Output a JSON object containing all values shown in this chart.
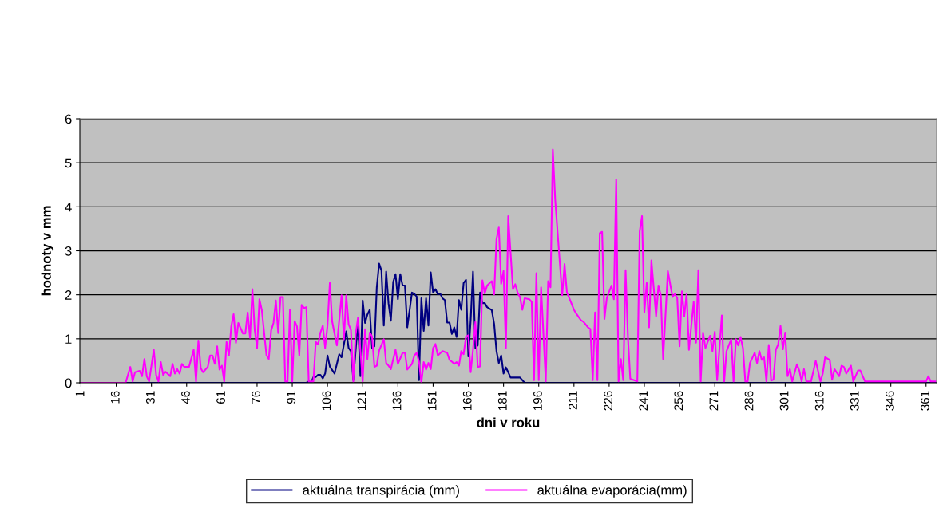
{
  "chart_data": {
    "type": "line",
    "xlabel": "dni v roku",
    "ylabel": "hodnoty v mm",
    "xlim": [
      0.5,
      365.5
    ],
    "xticks": [
      1,
      16,
      31,
      46,
      61,
      76,
      91,
      106,
      121,
      136,
      151,
      166,
      181,
      196,
      211,
      226,
      241,
      256,
      271,
      286,
      301,
      316,
      331,
      346,
      361
    ],
    "ylim": [
      0,
      6
    ],
    "yticks": [
      0,
      1,
      2,
      3,
      4,
      5,
      6
    ],
    "grid": "y",
    "legend": "bottom",
    "line_style": "solid",
    "marker": "none",
    "series": [
      {
        "name": "aktuálna transpirácia (mm)",
        "color": "#000080",
        "x": [
          1,
          97,
          98,
          99,
          100,
          101,
          102,
          103,
          104,
          105,
          106,
          107,
          109,
          111,
          112,
          114,
          115,
          116,
          117,
          119,
          120,
          121,
          122,
          123,
          124,
          125,
          126,
          127,
          128,
          129,
          130,
          131,
          132,
          133,
          134,
          135,
          136,
          137,
          138,
          139,
          140,
          142,
          143,
          144,
          145,
          146,
          147,
          148,
          149,
          150,
          151,
          152,
          153,
          154,
          155,
          156,
          157,
          158,
          159,
          160,
          161,
          162,
          163,
          164,
          165,
          166,
          167,
          168,
          169,
          170,
          171,
          172,
          173,
          174,
          176,
          177,
          178,
          179,
          180,
          181,
          182,
          183,
          184,
          188,
          190,
          365
        ],
        "values": [
          0,
          0,
          0.03,
          0,
          0.13,
          0.13,
          0.18,
          0.18,
          0.1,
          0.21,
          0.62,
          0.37,
          0.21,
          0.65,
          0.58,
          1.17,
          0.79,
          0.72,
          0.06,
          1.4,
          0.15,
          1.87,
          1.36,
          1.55,
          1.66,
          0.79,
          0.83,
          2.17,
          2.71,
          2.55,
          1.3,
          2.53,
          1.81,
          1.41,
          2.29,
          2.47,
          1.9,
          2.47,
          2.21,
          2.21,
          1.26,
          2.05,
          2.02,
          1.96,
          0.06,
          1.92,
          1.18,
          1.92,
          1.3,
          2.51,
          2.05,
          2.13,
          2.01,
          2.03,
          1.92,
          1.88,
          1.37,
          1.37,
          1.11,
          1.26,
          1.04,
          1.88,
          1.66,
          2.27,
          2.34,
          0.6,
          1.42,
          2.53,
          0.79,
          0.85,
          2.05,
          1.81,
          1.81,
          1.72,
          1.65,
          1.34,
          0.72,
          0.45,
          0.62,
          0.21,
          0.35,
          0.24,
          0.12,
          0.12,
          0,
          0
        ]
      },
      {
        "name": "aktuálna evaporácia(mm)",
        "color": "#ff00ff",
        "x": [
          1,
          20,
          22,
          23,
          24,
          26,
          27,
          28,
          29,
          30,
          32,
          33,
          34,
          35,
          36,
          37,
          39,
          40,
          41,
          42,
          43,
          44,
          45,
          47,
          49,
          50,
          51,
          52,
          53,
          55,
          56,
          57,
          58,
          59,
          60,
          61,
          62,
          63,
          64,
          65,
          66,
          67,
          68,
          70,
          71,
          72,
          73,
          74,
          75,
          76,
          77,
          78,
          80,
          81,
          82,
          83,
          84,
          85,
          86,
          87,
          88,
          89,
          90,
          91,
          92,
          93,
          94,
          95,
          96,
          97,
          98,
          100,
          101,
          102,
          103,
          104,
          105,
          106,
          107,
          108,
          110,
          112,
          113,
          114,
          115,
          116,
          117,
          118,
          119,
          121,
          122,
          123,
          124,
          125,
          126,
          127,
          128,
          130,
          131,
          132,
          133,
          134,
          135,
          136,
          138,
          139,
          140,
          142,
          143,
          144,
          145,
          146,
          147,
          148,
          149,
          150,
          151,
          152,
          153,
          155,
          157,
          158,
          159,
          160,
          161,
          162,
          163,
          164,
          165,
          166,
          167,
          168,
          169,
          170,
          171,
          172,
          173,
          174,
          176,
          177,
          178,
          179,
          180,
          181,
          182,
          183,
          184,
          185,
          186,
          187,
          188,
          189,
          190,
          192,
          193,
          194,
          195,
          196,
          197,
          199,
          200,
          201,
          202,
          203,
          206,
          207,
          208,
          209,
          211,
          212,
          214,
          215,
          217,
          218,
          219,
          220,
          221,
          222,
          223,
          224,
          225,
          227,
          228,
          229,
          230,
          231,
          232,
          233,
          234,
          235,
          238,
          239,
          240,
          241,
          242,
          243,
          244,
          246,
          247,
          248,
          249,
          251,
          253,
          254,
          255,
          256,
          257,
          258,
          259,
          260,
          262,
          263,
          264,
          265,
          266,
          267,
          269,
          270,
          271,
          272,
          274,
          275,
          276,
          278,
          279,
          280,
          281,
          282,
          283,
          284,
          285,
          286,
          288,
          289,
          290,
          291,
          292,
          293,
          294,
          295,
          296,
          297,
          298,
          299,
          300,
          301,
          302,
          303,
          304,
          306,
          307,
          308,
          309,
          310,
          312,
          314,
          316,
          317,
          318,
          320,
          321,
          322,
          324,
          325,
          326,
          327,
          329,
          330,
          332,
          333,
          335,
          361,
          362,
          363,
          365
        ],
        "values": [
          0,
          0,
          0.36,
          0.03,
          0.24,
          0.27,
          0.15,
          0.54,
          0.15,
          0.03,
          0.75,
          0.18,
          0.03,
          0.47,
          0.18,
          0.25,
          0.15,
          0.43,
          0.21,
          0.31,
          0.21,
          0.43,
          0.36,
          0.36,
          0.75,
          0.03,
          0.96,
          0.33,
          0.24,
          0.36,
          0.62,
          0.62,
          0.43,
          0.83,
          0.3,
          0.39,
          0.03,
          0.93,
          0.62,
          1.28,
          1.56,
          0.91,
          1.36,
          1.12,
          1.12,
          1.6,
          1.02,
          2.13,
          1.2,
          0.79,
          1.9,
          1.66,
          0.63,
          0.54,
          1.19,
          1.36,
          1.87,
          1.13,
          1.95,
          1.95,
          0.03,
          0.03,
          1.66,
          0.03,
          1.4,
          1.28,
          0.62,
          1.77,
          1.7,
          1.72,
          0.03,
          0.03,
          0.93,
          0.87,
          1.14,
          1.3,
          0.79,
          1.3,
          2.27,
          1.39,
          0.85,
          1.99,
          0.99,
          1.99,
          1.33,
          1.2,
          0.03,
          1.1,
          1.48,
          0.03,
          1.22,
          0.54,
          1.14,
          1.05,
          0.36,
          0.39,
          0.73,
          0.99,
          0.45,
          0.39,
          0.31,
          0.54,
          0.75,
          0.43,
          0.68,
          0.68,
          0.3,
          0.43,
          0.62,
          0.68,
          0.48,
          0,
          0.47,
          0.3,
          0.45,
          0.31,
          0.79,
          0.88,
          0.62,
          0.72,
          0.68,
          0.52,
          0.48,
          0.43,
          0.47,
          0.39,
          0.72,
          0.65,
          1.05,
          1.08,
          0.24,
          0.75,
          1.38,
          0.36,
          0.37,
          2.33,
          2.03,
          2.21,
          2.31,
          2.01,
          3.26,
          3.53,
          2.25,
          2.54,
          0.79,
          3.79,
          2.96,
          2.13,
          2.24,
          2.05,
          1.95,
          1.66,
          1.92,
          1.9,
          1.84,
          0.06,
          2.49,
          0.06,
          2.17,
          0.03,
          2.31,
          2.17,
          5.3,
          4.17,
          1.99,
          2.7,
          2.05,
          1.93,
          1.66,
          1.57,
          1.42,
          1.39,
          1.26,
          1.22,
          0.06,
          1.6,
          0.06,
          3.4,
          3.43,
          1.45,
          1.93,
          2.21,
          1.9,
          4.62,
          0.03,
          0.54,
          0.06,
          2.56,
          1.04,
          0.09,
          0.03,
          3.44,
          3.79,
          1.6,
          2.27,
          1.26,
          2.78,
          1.51,
          2.21,
          1.99,
          0.54,
          2.54,
          1.95,
          2.02,
          1.93,
          0.83,
          2.08,
          1.51,
          2.03,
          0.75,
          1.84,
          0.91,
          2.56,
          0.03,
          1.14,
          0.79,
          1.07,
          0.72,
          1.16,
          0.06,
          1.53,
          0.03,
          0.72,
          0.99,
          0.03,
          0.99,
          0.85,
          1.04,
          0.79,
          0.03,
          0.03,
          0.45,
          0.68,
          0.45,
          0.72,
          0.52,
          0.58,
          0.03,
          0.86,
          0.05,
          0.07,
          0.75,
          0.87,
          1.29,
          0.76,
          1.14,
          0.15,
          0.31,
          0.03,
          0.42,
          0.28,
          0.03,
          0.31,
          0.03,
          0.03,
          0.5,
          0.03,
          0.21,
          0.58,
          0.52,
          0.07,
          0.31,
          0.15,
          0.39,
          0.36,
          0.21,
          0.39,
          0.03,
          0.28,
          0.28,
          0.03,
          0.03,
          0.15,
          0.03,
          0.03
        ]
      }
    ]
  }
}
